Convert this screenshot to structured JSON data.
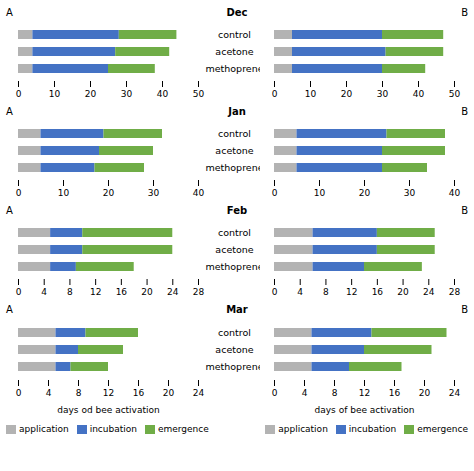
{
  "chart_data": [
    {
      "type": "bar",
      "orientation": "horizontal",
      "stacked": true,
      "title": "Dec",
      "annotations": [
        "A"
      ],
      "categories": [
        "control",
        "acetone",
        "methoprene"
      ],
      "series": [
        {
          "name": "application",
          "color": "#b3b3b3",
          "values": [
            4,
            4,
            4
          ]
        },
        {
          "name": "incubation",
          "color": "#4472c4",
          "values": [
            24,
            23,
            21
          ]
        },
        {
          "name": "emergence",
          "color": "#70ad47",
          "values": [
            16,
            15,
            13
          ]
        }
      ],
      "xlim": [
        0,
        50
      ],
      "xticks": [
        0,
        10,
        20,
        30,
        40,
        50
      ]
    },
    {
      "type": "bar",
      "orientation": "horizontal",
      "stacked": true,
      "annotations": [
        "B"
      ],
      "categories": [
        "control",
        "acetone",
        "methoprene"
      ],
      "series": [
        {
          "name": "application",
          "color": "#b3b3b3",
          "values": [
            5,
            5,
            5
          ]
        },
        {
          "name": "incubation",
          "color": "#4472c4",
          "values": [
            25,
            26,
            25
          ]
        },
        {
          "name": "emergence",
          "color": "#70ad47",
          "values": [
            17,
            16,
            12
          ]
        }
      ],
      "xlim": [
        0,
        50
      ],
      "xticks": [
        0,
        10,
        20,
        30,
        40,
        50
      ]
    },
    {
      "type": "bar",
      "orientation": "horizontal",
      "stacked": true,
      "title": "Jan",
      "annotations": [
        "A"
      ],
      "categories": [
        "control",
        "acetone",
        "methoprene"
      ],
      "series": [
        {
          "name": "application",
          "color": "#b3b3b3",
          "values": [
            5,
            5,
            5
          ]
        },
        {
          "name": "incubation",
          "color": "#4472c4",
          "values": [
            14,
            13,
            12
          ]
        },
        {
          "name": "emergence",
          "color": "#70ad47",
          "values": [
            13,
            12,
            11
          ]
        }
      ],
      "xlim": [
        0,
        40
      ],
      "xticks": [
        0,
        10,
        20,
        30,
        40
      ]
    },
    {
      "type": "bar",
      "orientation": "horizontal",
      "stacked": true,
      "annotations": [
        "B"
      ],
      "categories": [
        "control",
        "acetone",
        "methoprene"
      ],
      "series": [
        {
          "name": "application",
          "color": "#b3b3b3",
          "values": [
            5,
            5,
            5
          ]
        },
        {
          "name": "incubation",
          "color": "#4472c4",
          "values": [
            20,
            19,
            19
          ]
        },
        {
          "name": "emergence",
          "color": "#70ad47",
          "values": [
            13,
            14,
            10
          ]
        }
      ],
      "xlim": [
        0,
        40
      ],
      "xticks": [
        0,
        10,
        20,
        30,
        40
      ]
    },
    {
      "type": "bar",
      "orientation": "horizontal",
      "stacked": true,
      "title": "Feb",
      "annotations": [
        "A"
      ],
      "categories": [
        "control",
        "acetone",
        "methoprene"
      ],
      "series": [
        {
          "name": "application",
          "color": "#b3b3b3",
          "values": [
            5,
            5,
            5
          ]
        },
        {
          "name": "incubation",
          "color": "#4472c4",
          "values": [
            5,
            5,
            4
          ]
        },
        {
          "name": "emergence",
          "color": "#70ad47",
          "values": [
            14,
            14,
            9
          ]
        }
      ],
      "xlim": [
        0,
        28
      ],
      "xticks": [
        0,
        4,
        8,
        12,
        16,
        20,
        24,
        28
      ]
    },
    {
      "type": "bar",
      "orientation": "horizontal",
      "stacked": true,
      "annotations": [
        "B"
      ],
      "categories": [
        "control",
        "acetone",
        "methoprene"
      ],
      "series": [
        {
          "name": "application",
          "color": "#b3b3b3",
          "values": [
            6,
            6,
            6
          ]
        },
        {
          "name": "incubation",
          "color": "#4472c4",
          "values": [
            10,
            10,
            8
          ]
        },
        {
          "name": "emergence",
          "color": "#70ad47",
          "values": [
            9,
            9,
            9
          ]
        }
      ],
      "xlim": [
        0,
        28
      ],
      "xticks": [
        0,
        4,
        8,
        12,
        16,
        20,
        24,
        28
      ]
    },
    {
      "type": "bar",
      "orientation": "horizontal",
      "stacked": true,
      "title": "Mar",
      "annotations": [
        "A"
      ],
      "categories": [
        "control",
        "acetone",
        "methoprene"
      ],
      "series": [
        {
          "name": "application",
          "color": "#b3b3b3",
          "values": [
            5,
            5,
            5
          ]
        },
        {
          "name": "incubation",
          "color": "#4472c4",
          "values": [
            4,
            3,
            2
          ]
        },
        {
          "name": "emergence",
          "color": "#70ad47",
          "values": [
            7,
            6,
            5
          ]
        }
      ],
      "xlim": [
        0,
        24
      ],
      "xticks": [
        0,
        4,
        8,
        12,
        16,
        20,
        24
      ],
      "xlabel": "days od bee activation",
      "legend": "lower left"
    },
    {
      "type": "bar",
      "orientation": "horizontal",
      "stacked": true,
      "annotations": [
        "B"
      ],
      "categories": [
        "control",
        "acetone",
        "methoprene"
      ],
      "series": [
        {
          "name": "application",
          "color": "#b3b3b3",
          "values": [
            5,
            5,
            5
          ]
        },
        {
          "name": "incubation",
          "color": "#4472c4",
          "values": [
            8,
            7,
            5
          ]
        },
        {
          "name": "emergence",
          "color": "#70ad47",
          "values": [
            10,
            9,
            7
          ]
        }
      ],
      "xlim": [
        0,
        24
      ],
      "xticks": [
        0,
        4,
        8,
        12,
        16,
        20,
        24
      ],
      "xlabel": "days of bee activation",
      "legend": "lower right"
    }
  ]
}
